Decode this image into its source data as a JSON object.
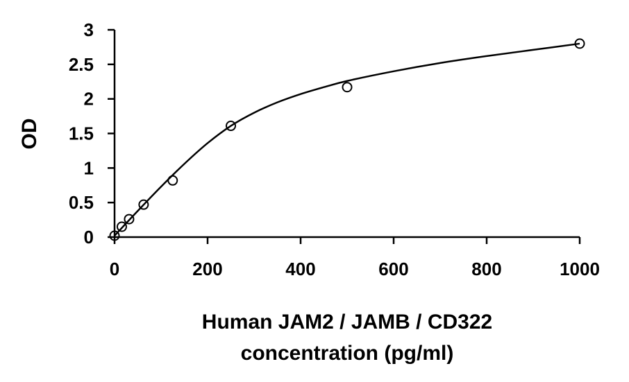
{
  "chart_data": {
    "type": "scatter",
    "title": "",
    "xlabel": [
      "Human JAM2 / JAMB / CD322",
      "concentration (pg/ml)"
    ],
    "ylabel": "OD",
    "xlim": [
      0,
      1000
    ],
    "ylim": [
      0,
      3
    ],
    "x_ticks": [
      "0",
      "200",
      "400",
      "600",
      "800",
      "1000"
    ],
    "y_ticks": [
      "0",
      "0.5",
      "1",
      "1.5",
      "2",
      "2.5",
      "3"
    ],
    "grid": false,
    "legend": "none",
    "marker": "open-circle",
    "series": [
      {
        "points": [
          {
            "x": 0,
            "y": 0.02
          },
          {
            "x": 15.6,
            "y": 0.15
          },
          {
            "x": 31.25,
            "y": 0.26
          },
          {
            "x": 62.5,
            "y": 0.47
          },
          {
            "x": 125,
            "y": 0.82
          },
          {
            "x": 250,
            "y": 1.61
          },
          {
            "x": 500,
            "y": 2.17
          },
          {
            "x": 1000,
            "y": 2.8
          }
        ]
      }
    ],
    "fit_curve": {
      "type": "smooth",
      "points": [
        {
          "x": 0,
          "y": 0.02
        },
        {
          "x": 50,
          "y": 0.38
        },
        {
          "x": 100,
          "y": 0.73
        },
        {
          "x": 150,
          "y": 1.06
        },
        {
          "x": 200,
          "y": 1.36
        },
        {
          "x": 250,
          "y": 1.61
        },
        {
          "x": 300,
          "y": 1.8
        },
        {
          "x": 350,
          "y": 1.95
        },
        {
          "x": 400,
          "y": 2.07
        },
        {
          "x": 450,
          "y": 2.17
        },
        {
          "x": 500,
          "y": 2.26
        },
        {
          "x": 600,
          "y": 2.4
        },
        {
          "x": 700,
          "y": 2.52
        },
        {
          "x": 800,
          "y": 2.62
        },
        {
          "x": 900,
          "y": 2.71
        },
        {
          "x": 1000,
          "y": 2.8
        }
      ]
    },
    "colors": {
      "axis": "#000000",
      "marker": "#000000",
      "curve": "#000000"
    }
  }
}
